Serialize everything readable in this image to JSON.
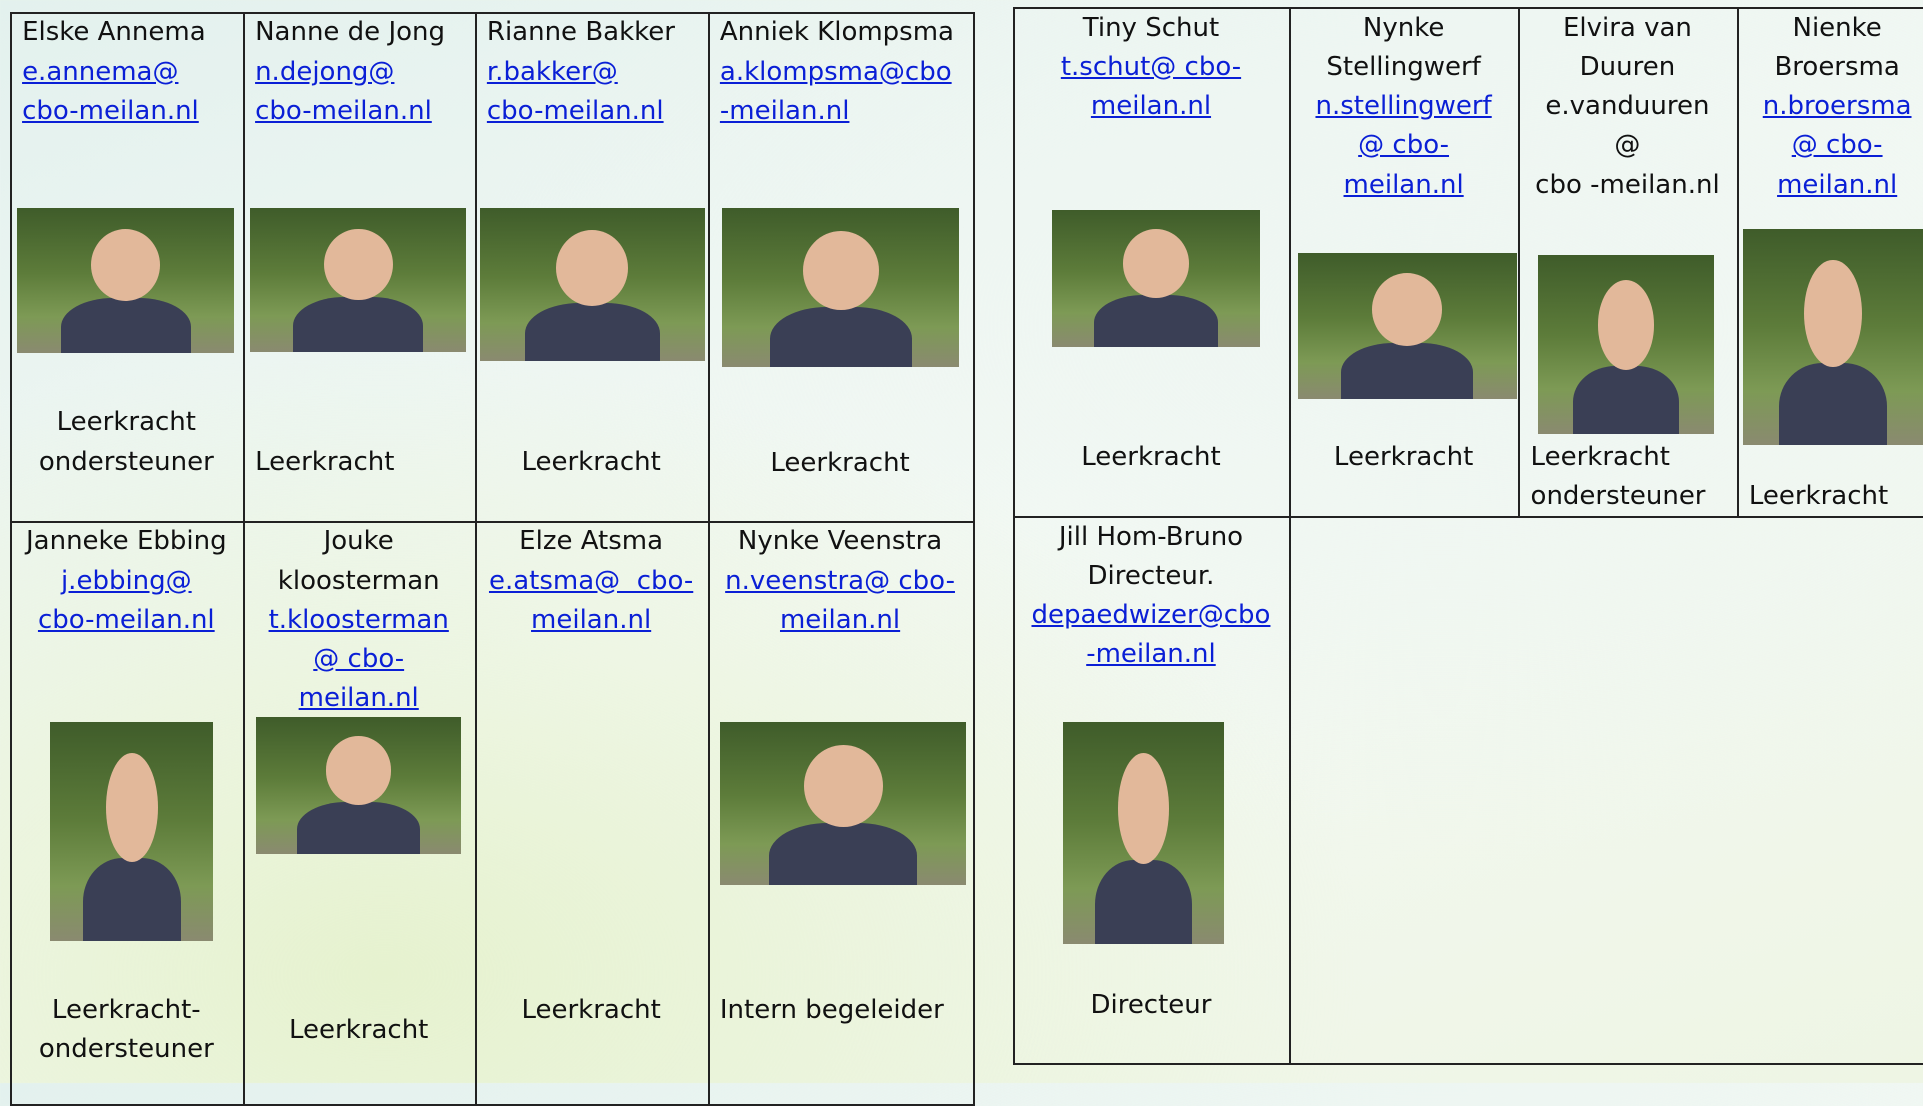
{
  "cards": [
    {
      "name": [
        "Elske Annema"
      ],
      "email": [
        "e.annema@",
        "cbo-meilan.nl"
      ],
      "role": [
        "Leerkracht",
        "ondersteuner"
      ]
    },
    {
      "name": [
        "Nanne de Jong"
      ],
      "email": [
        "n.dejong@",
        "cbo-meilan.nl"
      ],
      "role": [
        "Leerkracht"
      ]
    },
    {
      "name": [
        "Rianne Bakker"
      ],
      "email": [
        "r.bakker@",
        "cbo-meilan.nl"
      ],
      "role": [
        "Leerkracht"
      ]
    },
    {
      "name": [
        "Anniek Klompsma"
      ],
      "email": [
        "a.klompsma@cbo",
        "-meilan.nl"
      ],
      "role": [
        "Leerkracht"
      ]
    },
    {
      "name": [
        "Janneke Ebbing"
      ],
      "email": [
        "j.ebbing@",
        "cbo-meilan.nl"
      ],
      "role": [
        "Leerkracht-",
        "ondersteuner"
      ]
    },
    {
      "name": [
        "Jouke",
        "kloosterman"
      ],
      "email": [
        "t.kloosterman",
        "@ cbo-",
        "meilan.nl"
      ],
      "role": [
        "Leerkracht"
      ]
    },
    {
      "name": [
        "Elze Atsma"
      ],
      "email": [
        "e.atsma@  cbo-",
        "meilan.nl"
      ],
      "role": [
        "Leerkracht"
      ]
    },
    {
      "name": [
        "Nynke Veenstra"
      ],
      "email": [
        "n.veenstra@ cbo-",
        "meilan.nl"
      ],
      "role": [
        "Intern begeleider"
      ]
    },
    {
      "name": [
        "Tiny Schut"
      ],
      "email": [
        "t.schut@ cbo-",
        "meilan.nl"
      ],
      "role": [
        "Leerkracht"
      ]
    },
    {
      "name": [
        "Nynke",
        "Stellingwerf"
      ],
      "email": [
        "n.stellingwerf",
        "@ cbo-",
        "meilan.nl"
      ],
      "role": [
        "Leerkracht"
      ]
    },
    {
      "name": [
        "Elvira van",
        "Duuren",
        "e.vanduuren",
        "@",
        "cbo -meilan.nl"
      ],
      "email": [],
      "role": [
        "Leerkracht",
        "ondersteuner"
      ]
    },
    {
      "name": [
        "Nienke",
        "Broersma"
      ],
      "email": [
        "n.broersma",
        "@ cbo-",
        "meilan.nl"
      ],
      "role": [
        "Leerkracht"
      ]
    },
    {
      "name": [
        "Jill Hom-Bruno",
        "Directeur."
      ],
      "email": [
        "depaedwizer@cbo",
        "-meilan.nl"
      ],
      "role": [
        "Directeur"
      ]
    }
  ]
}
